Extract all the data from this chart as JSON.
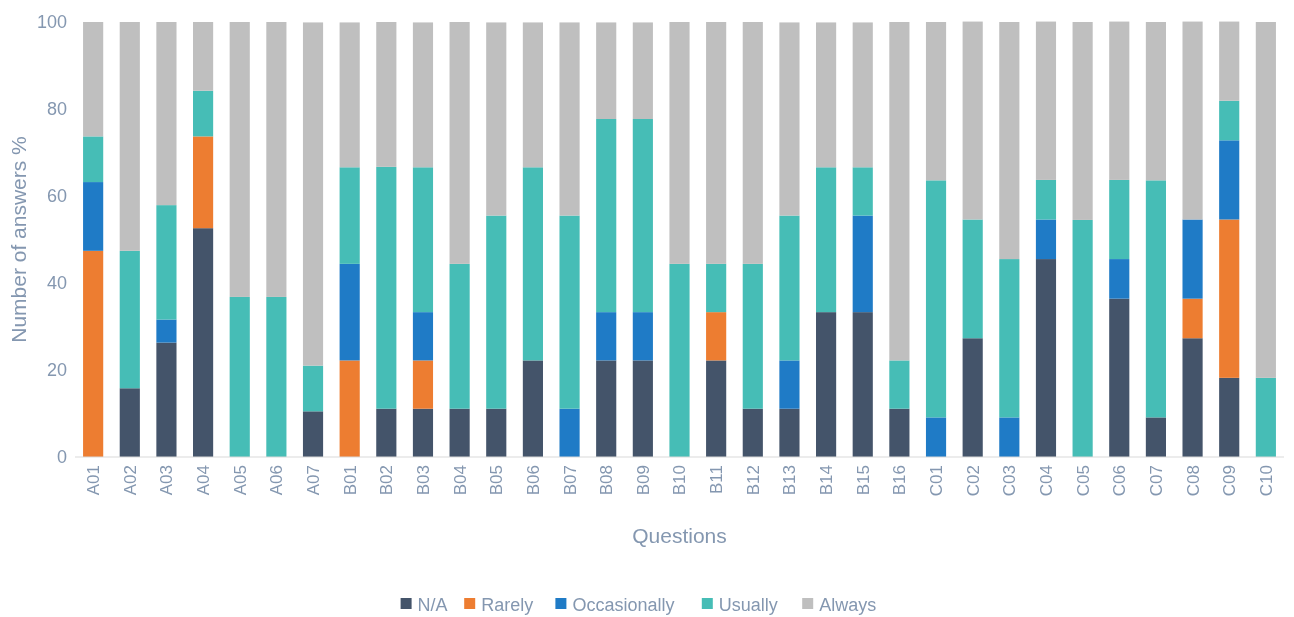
{
  "chart_data": {
    "type": "bar",
    "stacked": true,
    "xlabel": "Questions",
    "ylabel": "Number of answers %",
    "categories": [
      "A01",
      "A02",
      "A03",
      "A04",
      "A05",
      "A06",
      "A07",
      "B01",
      "B02",
      "B03",
      "B04",
      "B05",
      "B06",
      "B07",
      "B08",
      "B09",
      "B10",
      "B11",
      "B12",
      "B13",
      "B14",
      "B15",
      "B16",
      "C01",
      "C02",
      "C03",
      "C04",
      "C05",
      "C06",
      "C07",
      "C08",
      "C09",
      "C10"
    ],
    "ylim": [
      0,
      100
    ],
    "yticks": [
      0,
      20,
      40,
      60,
      80,
      100
    ],
    "grid": false,
    "legend": "bottom",
    "series": [
      {
        "name": "N/A",
        "color": "#44546a",
        "values": [
          0,
          15.8,
          26.3,
          52.6,
          0,
          0,
          10.5,
          0,
          11.1,
          11.1,
          11.1,
          11.1,
          22.2,
          0,
          22.2,
          22.2,
          0,
          22.2,
          11.1,
          11.1,
          33.3,
          33.3,
          11.1,
          0,
          27.3,
          0,
          45.5,
          0,
          36.4,
          9.1,
          27.3,
          18.2,
          0
        ]
      },
      {
        "name": "Rarely",
        "color": "#ed7d31",
        "values": [
          47.4,
          0,
          0,
          21.1,
          0,
          0,
          0,
          22.2,
          0,
          11.1,
          0,
          0,
          0,
          0,
          0,
          0,
          0,
          11.1,
          0,
          0,
          0,
          0,
          0,
          0,
          0,
          0,
          0,
          0,
          0,
          0,
          9.1,
          36.4,
          0
        ]
      },
      {
        "name": "Occasionally",
        "color": "#1f7bc6",
        "values": [
          15.8,
          0,
          5.3,
          0,
          0,
          0,
          0,
          22.2,
          0,
          11.1,
          0,
          0,
          0,
          11.1,
          11.1,
          11.1,
          0,
          0,
          0,
          11.1,
          0,
          22.2,
          0,
          9.1,
          0,
          9.1,
          9.1,
          0,
          9.1,
          0,
          18.2,
          18.2,
          0
        ]
      },
      {
        "name": "Usually",
        "color": "#46bdb6",
        "values": [
          10.5,
          31.6,
          26.3,
          10.5,
          36.8,
          36.8,
          10.5,
          22.2,
          55.6,
          33.3,
          33.3,
          44.4,
          44.4,
          44.4,
          44.4,
          44.4,
          44.4,
          11.1,
          33.3,
          33.3,
          33.3,
          11.1,
          11.1,
          54.5,
          27.3,
          36.4,
          9.1,
          54.5,
          18.2,
          54.5,
          0,
          9.1,
          18.2
        ]
      },
      {
        "name": "Always",
        "color": "#bfbfbf",
        "values": [
          26.3,
          52.6,
          42.1,
          15.8,
          63.2,
          63.2,
          78.9,
          33.3,
          33.3,
          33.3,
          55.6,
          44.4,
          33.3,
          44.4,
          22.2,
          22.2,
          55.6,
          55.6,
          55.6,
          44.4,
          33.3,
          33.3,
          77.8,
          36.4,
          45.5,
          54.5,
          36.4,
          45.5,
          36.4,
          36.4,
          45.5,
          18.2,
          81.8
        ]
      }
    ]
  }
}
